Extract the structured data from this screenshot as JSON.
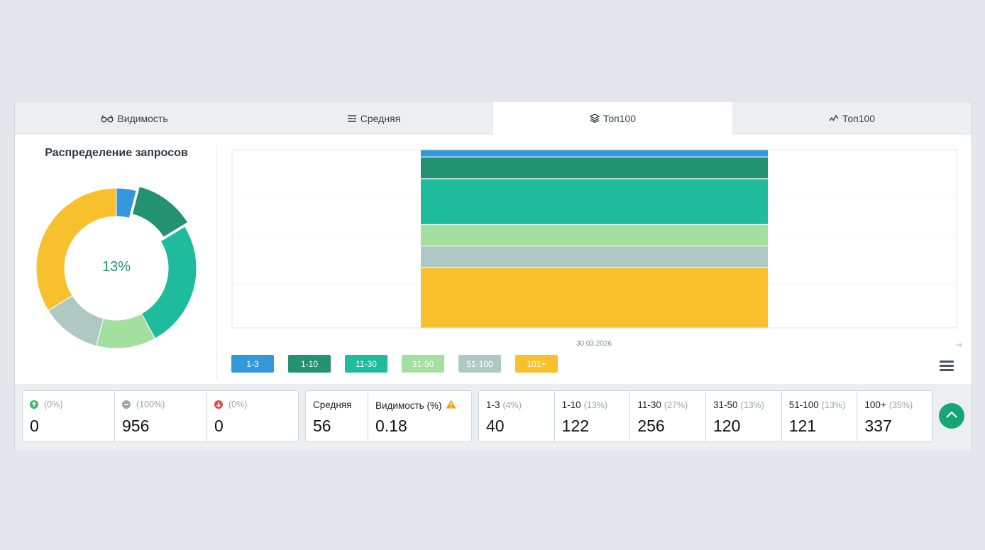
{
  "tabs": [
    {
      "label": "Видимость",
      "icon": "glasses-icon"
    },
    {
      "label": "Средняя",
      "icon": "lines-icon"
    },
    {
      "label": "Топ100",
      "icon": "layers-icon",
      "active": true
    },
    {
      "label": "Топ100",
      "icon": "activity-icon"
    }
  ],
  "donut": {
    "title": "Распределение запросов",
    "center_label": "13%"
  },
  "chart_data": {
    "type": "bar",
    "stacked": true,
    "categories": [
      "30.03.2026"
    ],
    "series": [
      {
        "name": "1-3",
        "values": [
          40
        ],
        "color": "#3398db"
      },
      {
        "name": "1-10",
        "values": [
          122
        ],
        "color": "#229270"
      },
      {
        "name": "11-30",
        "values": [
          256
        ],
        "color": "#1ebc9c"
      },
      {
        "name": "31-50",
        "values": [
          120
        ],
        "color": "#a3e0a0"
      },
      {
        "name": "51-100",
        "values": [
          121
        ],
        "color": "#b0c8c4"
      },
      {
        "name": "101+",
        "values": [
          337
        ],
        "color": "#f8c02d"
      }
    ],
    "grid": true
  },
  "legend_items": [
    "1-3",
    "1-10",
    "11-30",
    "31-50",
    "51-100",
    "101+"
  ],
  "stats": {
    "changes": [
      {
        "pct": "(0%)",
        "value": "0",
        "icon": "arrow-up-icon"
      },
      {
        "pct": "(100%)",
        "value": "956",
        "icon": "equal-icon"
      },
      {
        "pct": "(0%)",
        "value": "0",
        "icon": "arrow-down-icon"
      }
    ],
    "avg": {
      "label": "Средняя",
      "value": "56"
    },
    "visibility": {
      "label": "Видимость (%)",
      "value": "0.18"
    },
    "ranges": [
      {
        "label": "1-3",
        "pct": "(4%)",
        "value": "40"
      },
      {
        "label": "1-10",
        "pct": "(13%)",
        "value": "122"
      },
      {
        "label": "11-30",
        "pct": "(27%)",
        "value": "256"
      },
      {
        "label": "31-50",
        "pct": "(13%)",
        "value": "120"
      },
      {
        "label": "51-100",
        "pct": "(13%)",
        "value": "121"
      },
      {
        "label": "100+",
        "pct": "(35%)",
        "value": "337"
      }
    ]
  }
}
